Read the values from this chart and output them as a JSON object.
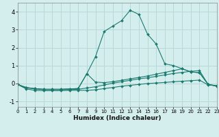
{
  "xlabel": "Humidex (Indice chaleur)",
  "bg_color": "#d4eeee",
  "grid_color": "#b8d8d8",
  "line_color": "#1a7a6e",
  "xlim": [
    0,
    23
  ],
  "ylim": [
    -1.3,
    4.5
  ],
  "xticks": [
    0,
    1,
    2,
    3,
    4,
    5,
    6,
    7,
    8,
    9,
    10,
    11,
    12,
    13,
    14,
    15,
    16,
    17,
    18,
    19,
    20,
    21,
    22,
    23
  ],
  "yticks": [
    -1,
    0,
    1,
    2,
    3,
    4
  ],
  "series": [
    {
      "x": [
        0,
        1,
        2,
        3,
        4,
        5,
        6,
        7,
        8,
        9,
        10,
        11,
        12,
        13,
        14,
        15,
        16,
        17,
        18,
        19,
        20,
        21,
        22,
        23
      ],
      "y": [
        -0.05,
        -0.3,
        -0.38,
        -0.4,
        -0.4,
        -0.4,
        -0.38,
        -0.38,
        -0.38,
        -0.35,
        -0.28,
        -0.22,
        -0.15,
        -0.1,
        -0.05,
        0.0,
        0.03,
        0.06,
        0.1,
        0.13,
        0.16,
        0.19,
        -0.08,
        -0.12
      ]
    },
    {
      "x": [
        0,
        1,
        2,
        3,
        4,
        5,
        6,
        7,
        8,
        9,
        10,
        11,
        12,
        13,
        14,
        15,
        16,
        17,
        18,
        19,
        20,
        21,
        22,
        23
      ],
      "y": [
        -0.05,
        -0.22,
        -0.3,
        -0.34,
        -0.34,
        -0.34,
        -0.34,
        -0.32,
        -0.25,
        -0.18,
        -0.08,
        0.02,
        0.1,
        0.18,
        0.26,
        0.32,
        0.4,
        0.48,
        0.56,
        0.62,
        0.68,
        0.72,
        -0.05,
        -0.12
      ]
    },
    {
      "x": [
        0,
        1,
        2,
        3,
        4,
        5,
        6,
        7,
        8,
        9,
        10,
        11,
        12,
        13,
        14,
        15,
        16,
        17,
        18,
        19,
        20,
        21,
        22,
        23
      ],
      "y": [
        -0.05,
        -0.22,
        -0.28,
        -0.32,
        -0.32,
        -0.32,
        -0.3,
        -0.28,
        0.55,
        0.08,
        0.05,
        0.1,
        0.18,
        0.26,
        0.34,
        0.42,
        0.52,
        0.62,
        0.72,
        0.82,
        0.65,
        0.6,
        -0.05,
        -0.15
      ]
    },
    {
      "x": [
        0,
        1,
        2,
        3,
        4,
        5,
        6,
        7,
        8,
        9,
        10,
        11,
        12,
        13,
        14,
        15,
        16,
        17,
        18,
        19,
        20,
        21,
        22,
        23
      ],
      "y": [
        -0.05,
        -0.25,
        -0.28,
        -0.32,
        -0.32,
        -0.32,
        -0.3,
        -0.28,
        0.55,
        1.5,
        2.9,
        3.2,
        3.5,
        4.08,
        3.85,
        2.75,
        2.2,
        1.1,
        1.0,
        0.82,
        0.65,
        0.6,
        -0.05,
        -0.15
      ]
    }
  ]
}
